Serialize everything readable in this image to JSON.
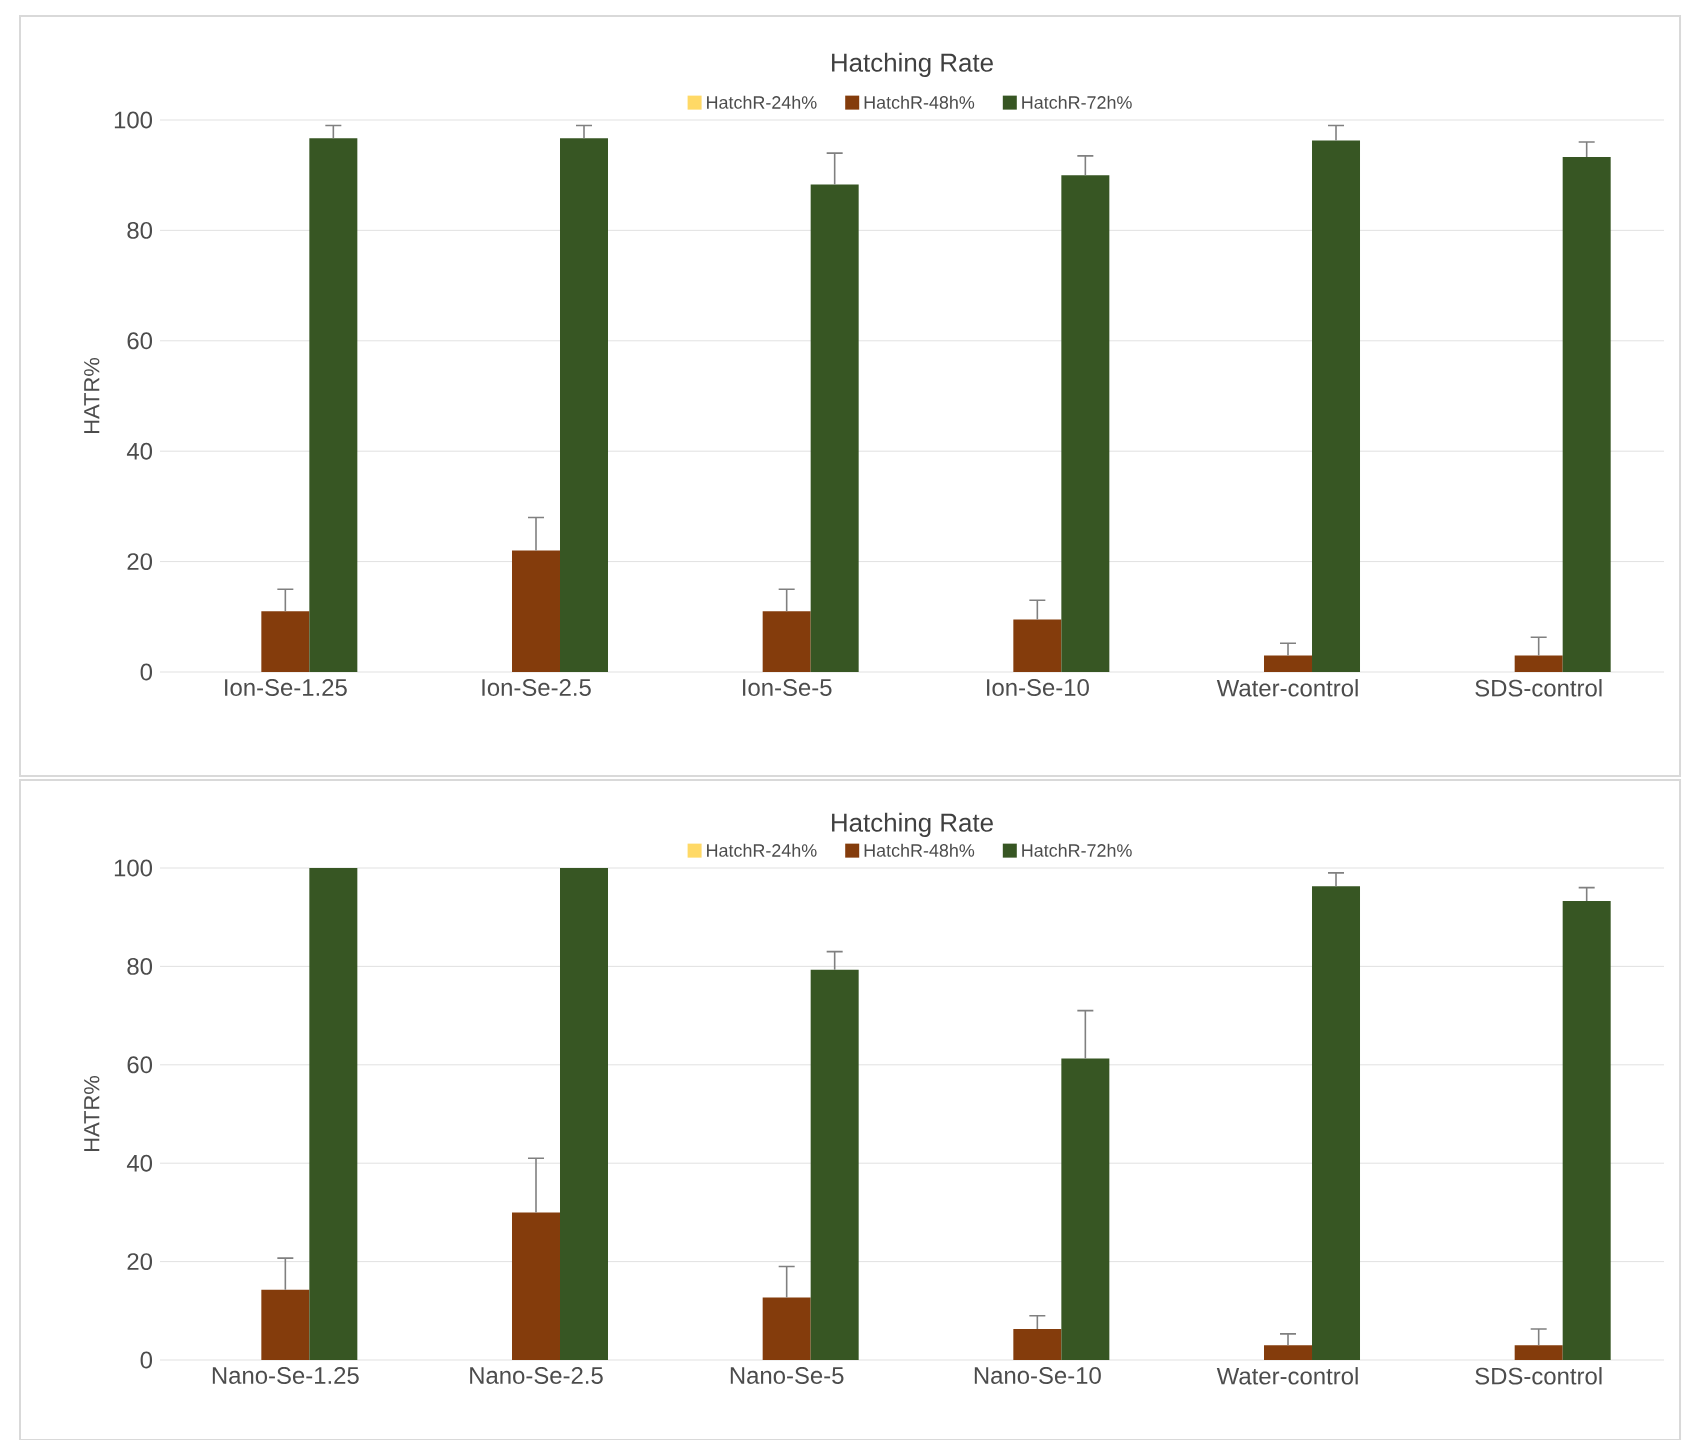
{
  "chart_data": [
    {
      "type": "bar",
      "title": "Hatching Rate",
      "ylabel": "HATR%",
      "categories": [
        "Ion-Se-1.25",
        "Ion-Se-2.5",
        "Ion-Se-5",
        "Ion-Se-10",
        "Water-control",
        "SDS-control"
      ],
      "series": [
        {
          "name": "HatchR-24h%",
          "color": "#ffd966",
          "values": [
            0,
            0,
            0,
            0,
            0,
            0
          ],
          "errors": [
            null,
            null,
            null,
            null,
            null,
            null
          ]
        },
        {
          "name": "HatchR-48h%",
          "color": "#843c0c",
          "values": [
            11,
            22,
            11,
            9.5,
            3,
            3
          ],
          "errors": [
            4,
            6,
            4,
            3.5,
            2.2,
            3.3
          ]
        },
        {
          "name": "HatchR-72h%",
          "color": "#375623",
          "values": [
            96.7,
            96.7,
            88.3,
            90,
            96.3,
            93.3
          ],
          "errors": [
            2.3,
            2.3,
            5.7,
            3.5,
            2.7,
            2.7
          ]
        }
      ],
      "ylim": [
        0,
        100
      ],
      "yticks": [
        0,
        20,
        40,
        60,
        80,
        100
      ],
      "grid": "y",
      "legend": "top"
    },
    {
      "type": "bar",
      "title": "Hatching Rate",
      "ylabel": "HATR%",
      "categories": [
        "Nano-Se-1.25",
        "Nano-Se-2.5",
        "Nano-Se-5",
        "Nano-Se-10",
        "Water-control",
        "SDS-control"
      ],
      "series": [
        {
          "name": "HatchR-24h%",
          "color": "#ffd966",
          "values": [
            0,
            0,
            0,
            0,
            0,
            0
          ],
          "errors": [
            null,
            null,
            null,
            null,
            null,
            null
          ]
        },
        {
          "name": "HatchR-48h%",
          "color": "#843c0c",
          "values": [
            14.3,
            30,
            12.7,
            6.3,
            3,
            3
          ],
          "errors": [
            6.4,
            11,
            6.3,
            2.7,
            2.3,
            3.3
          ]
        },
        {
          "name": "HatchR-72h%",
          "color": "#375623",
          "values": [
            100,
            100,
            79.3,
            61.3,
            96.3,
            93.3
          ],
          "errors": [
            null,
            null,
            3.7,
            9.7,
            2.7,
            2.7
          ]
        }
      ],
      "ylim": [
        0,
        100
      ],
      "yticks": [
        0,
        20,
        40,
        60,
        80,
        100
      ],
      "grid": "y",
      "legend": "top"
    }
  ]
}
